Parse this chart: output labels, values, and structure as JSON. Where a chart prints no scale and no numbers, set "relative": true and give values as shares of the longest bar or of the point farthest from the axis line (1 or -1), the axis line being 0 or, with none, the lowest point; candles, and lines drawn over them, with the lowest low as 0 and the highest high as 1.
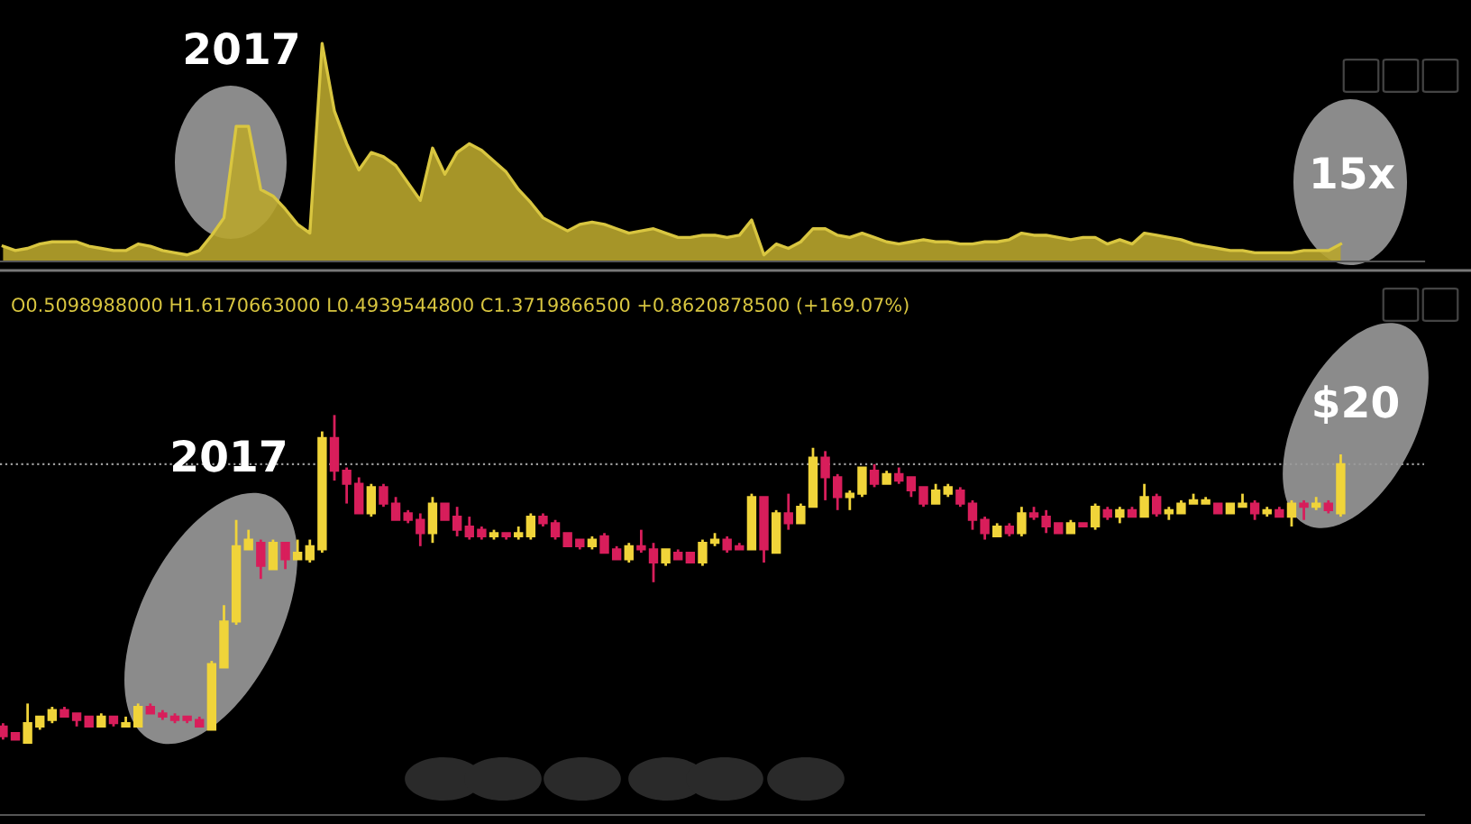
{
  "chart_data": [
    {
      "type": "area",
      "relative": true,
      "annotations": [
        "2017",
        "15x"
      ],
      "categories": [
        null,
        null,
        null,
        null,
        null,
        null,
        null,
        null,
        null,
        null,
        null,
        null,
        null,
        null,
        null,
        null,
        null,
        null,
        null,
        null,
        null,
        null,
        null,
        null,
        null,
        null,
        null,
        null,
        null,
        null,
        null,
        null,
        null,
        null,
        null,
        null,
        null,
        null,
        null,
        null,
        null,
        null,
        null,
        null,
        null,
        null,
        null,
        null,
        null,
        null,
        null,
        null,
        null,
        null,
        null,
        null,
        null,
        null,
        null,
        null,
        null,
        null,
        null,
        null,
        null,
        null,
        null,
        null,
        null,
        null,
        null,
        null,
        null,
        null,
        null,
        null,
        null,
        null,
        null,
        null,
        null,
        null,
        null,
        null,
        null,
        null,
        null,
        null,
        null,
        null,
        null,
        null,
        null,
        null,
        null,
        null,
        null,
        null,
        null,
        null,
        null,
        null,
        null,
        null,
        null,
        null,
        null,
        null,
        null,
        null
      ],
      "series": [
        {
          "color": "#b8a52c",
          "values": [
            0.07,
            0.05,
            0.06,
            0.08,
            0.09,
            0.09,
            0.09,
            0.07,
            0.06,
            0.05,
            0.05,
            0.08,
            0.07,
            0.05,
            0.04,
            0.03,
            0.05,
            0.12,
            0.2,
            0.62,
            0.62,
            0.33,
            0.3,
            0.24,
            0.17,
            0.13,
            1.0,
            0.69,
            0.54,
            0.42,
            0.5,
            0.48,
            0.44,
            0.36,
            0.28,
            0.52,
            0.4,
            0.5,
            0.54,
            0.51,
            0.46,
            0.41,
            0.33,
            0.27,
            0.2,
            0.17,
            0.14,
            0.17,
            0.18,
            0.17,
            0.15,
            0.13,
            0.14,
            0.15,
            0.13,
            0.11,
            0.11,
            0.12,
            0.12,
            0.11,
            0.12,
            0.19,
            0.03,
            0.08,
            0.06,
            0.09,
            0.15,
            0.15,
            0.12,
            0.11,
            0.13,
            0.11,
            0.09,
            0.08,
            0.09,
            0.1,
            0.09,
            0.09,
            0.08,
            0.08,
            0.09,
            0.09,
            0.1,
            0.13,
            0.12,
            0.12,
            0.11,
            0.1,
            0.11,
            0.11,
            0.08,
            0.1,
            0.08,
            0.13,
            0.12,
            0.11,
            0.1,
            0.08,
            0.07,
            0.06,
            0.05,
            0.05,
            0.04,
            0.04,
            0.04,
            0.04,
            0.05,
            0.05,
            0.05,
            0.08
          ]
        }
      ]
    },
    {
      "type": "candlestick",
      "relative": true,
      "annotations": [
        "O0.5098988000 H1.6170663000 L0.4939544800 C1.3719866500 +0.8620878500 (+169.07%)",
        "2017",
        "$20"
      ],
      "ref_lines": [
        {
          "axis": "y",
          "value": 0.85,
          "color": "#9a9a9a",
          "line_style": "dotted"
        }
      ],
      "categories": [
        null,
        null,
        null,
        null,
        null,
        null,
        null,
        null,
        null,
        null,
        null,
        null,
        null,
        null,
        null,
        null,
        null,
        null,
        null,
        null,
        null,
        null,
        null,
        null,
        null,
        null,
        null,
        null,
        null,
        null,
        null,
        null,
        null,
        null,
        null,
        null,
        null,
        null,
        null,
        null,
        null,
        null,
        null,
        null,
        null,
        null,
        null,
        null,
        null,
        null,
        null,
        null,
        null,
        null,
        null,
        null,
        null,
        null,
        null,
        null,
        null,
        null,
        null,
        null,
        null,
        null,
        null,
        null,
        null,
        null,
        null,
        null,
        null,
        null,
        null,
        null,
        null,
        null,
        null,
        null,
        null,
        null,
        null,
        null,
        null,
        null,
        null,
        null,
        null,
        null,
        null,
        null,
        null,
        null,
        null,
        null,
        null,
        null,
        null,
        null,
        null,
        null,
        null,
        null,
        null,
        null,
        null,
        null,
        null,
        null
      ],
      "colors": [
        "#d81e5b",
        "#d81e5b",
        "#f0d43a",
        "#f0d43a",
        "#f0d43a",
        "#d81e5b",
        "#d81e5b",
        "#d81e5b",
        "#f0d43a",
        "#d81e5b",
        "#f0d43a",
        "#f0d43a",
        "#d81e5b",
        "#d81e5b",
        "#d81e5b",
        "#d81e5b",
        "#d81e5b",
        "#f0d43a",
        "#f0d43a",
        "#f0d43a",
        "#f0d43a",
        "#d81e5b",
        "#f0d43a",
        "#d81e5b",
        "#f0d43a",
        "#f0d43a",
        "#f0d43a",
        "#d81e5b",
        "#d81e5b",
        "#d81e5b",
        "#f0d43a",
        "#d81e5b",
        "#d81e5b",
        "#d81e5b",
        "#d81e5b",
        "#f0d43a",
        "#d81e5b",
        "#d81e5b",
        "#d81e5b",
        "#d81e5b",
        "#f0d43a",
        "#d81e5b",
        "#f0d43a",
        "#f0d43a",
        "#d81e5b",
        "#d81e5b",
        "#d81e5b",
        "#d81e5b",
        "#f0d43a",
        "#d81e5b",
        "#d81e5b",
        "#f0d43a",
        "#d81e5b",
        "#d81e5b",
        "#f0d43a",
        "#d81e5b",
        "#d81e5b",
        "#f0d43a",
        "#f0d43a",
        "#d81e5b",
        "#d81e5b",
        "#f0d43a",
        "#d81e5b",
        "#f0d43a",
        "#d81e5b",
        "#f0d43a",
        "#f0d43a",
        "#d81e5b",
        "#d81e5b",
        "#f0d43a",
        "#f0d43a",
        "#d81e5b",
        "#f0d43a",
        "#d81e5b",
        "#d81e5b",
        "#d81e5b",
        "#f0d43a",
        "#f0d43a",
        "#d81e5b",
        "#d81e5b",
        "#d81e5b",
        "#f0d43a",
        "#d81e5b",
        "#f0d43a",
        "#d81e5b",
        "#d81e5b",
        "#d81e5b",
        "#f0d43a",
        "#d81e5b",
        "#f0d43a",
        "#d81e5b",
        "#f0d43a",
        "#d81e5b",
        "#f0d43a",
        "#d81e5b",
        "#f0d43a",
        "#f0d43a",
        "#f0d43a",
        "#f0d43a",
        "#d81e5b",
        "#f0d43a",
        "#f0d43a",
        "#d81e5b",
        "#f0d43a",
        "#d81e5b",
        "#f0d43a",
        "#d81e5b",
        "#f0d43a",
        "#d81e5b",
        "#f0d43a"
      ],
      "ohlc": [
        [
          0.05,
          0.06,
          0.01,
          0.02
        ],
        [
          0.03,
          0.03,
          0.01,
          0.01
        ],
        [
          0.0,
          0.12,
          0,
          0.06
        ],
        [
          0.05,
          0.08,
          0.04,
          0.08
        ],
        [
          0.07,
          0.11,
          0.06,
          0.1
        ],
        [
          0.1,
          0.11,
          0.08,
          0.08
        ],
        [
          0.09,
          0.09,
          0.05,
          0.07
        ],
        [
          0.08,
          0.08,
          0.05,
          0.05
        ],
        [
          0.05,
          0.09,
          0.05,
          0.08
        ],
        [
          0.08,
          0.08,
          0.05,
          0.06
        ],
        [
          0.05,
          0.08,
          0.05,
          0.06
        ],
        [
          0.05,
          0.12,
          0.05,
          0.11
        ],
        [
          0.11,
          0.12,
          0.09,
          0.09
        ],
        [
          0.09,
          0.1,
          0.07,
          0.08
        ],
        [
          0.08,
          0.09,
          0.06,
          0.07
        ],
        [
          0.08,
          0.08,
          0.06,
          0.07
        ],
        [
          0.07,
          0.08,
          0.05,
          0.05
        ],
        [
          0.04,
          0.25,
          0.04,
          0.24
        ],
        [
          0.23,
          0.42,
          0.23,
          0.37
        ],
        [
          0.37,
          0.68,
          0.36,
          0.6
        ],
        [
          0.59,
          0.65,
          0.59,
          0.62
        ],
        [
          0.61,
          0.62,
          0.5,
          0.54
        ],
        [
          0.53,
          0.62,
          0.53,
          0.61
        ],
        [
          0.61,
          0.61,
          0.53,
          0.56
        ],
        [
          0.56,
          0.62,
          0.56,
          0.58
        ],
        [
          0.56,
          0.62,
          0.55,
          0.6
        ],
        [
          0.59,
          0.95,
          0.58,
          0.93
        ],
        [
          0.93,
          1,
          0.8,
          0.83
        ],
        [
          0.83,
          0.84,
          0.73,
          0.79
        ],
        [
          0.79,
          0.81,
          0.7,
          0.7
        ],
        [
          0.7,
          0.79,
          0.69,
          0.78
        ],
        [
          0.78,
          0.79,
          0.72,
          0.73
        ],
        [
          0.73,
          0.75,
          0.68,
          0.68
        ],
        [
          0.7,
          0.71,
          0.67,
          0.68
        ],
        [
          0.68,
          0.7,
          0.6,
          0.64
        ],
        [
          0.64,
          0.75,
          0.61,
          0.73
        ],
        [
          0.73,
          0.73,
          0.68,
          0.68
        ],
        [
          0.69,
          0.72,
          0.63,
          0.65
        ],
        [
          0.66,
          0.69,
          0.62,
          0.63
        ],
        [
          0.65,
          0.66,
          0.62,
          0.63
        ],
        [
          0.63,
          0.65,
          0.62,
          0.64
        ],
        [
          0.64,
          0.64,
          0.62,
          0.63
        ],
        [
          0.63,
          0.66,
          0.62,
          0.64
        ],
        [
          0.63,
          0.7,
          0.62,
          0.69
        ],
        [
          0.69,
          0.7,
          0.66,
          0.67
        ],
        [
          0.67,
          0.68,
          0.62,
          0.63
        ],
        [
          0.64,
          0.64,
          0.6,
          0.6
        ],
        [
          0.62,
          0.62,
          0.59,
          0.6
        ],
        [
          0.6,
          0.63,
          0.59,
          0.62
        ],
        [
          0.63,
          0.64,
          0.58,
          0.58
        ],
        [
          0.59,
          0.6,
          0.56,
          0.56
        ],
        [
          0.56,
          0.61,
          0.55,
          0.6
        ],
        [
          0.6,
          0.65,
          0.58,
          0.59
        ],
        [
          0.59,
          0.61,
          0.49,
          0.55
        ],
        [
          0.55,
          0.59,
          0.54,
          0.59
        ],
        [
          0.58,
          0.59,
          0.56,
          0.56
        ],
        [
          0.58,
          0.58,
          0.55,
          0.55
        ],
        [
          0.55,
          0.62,
          0.54,
          0.61
        ],
        [
          0.61,
          0.64,
          0.6,
          0.62
        ],
        [
          0.62,
          0.63,
          0.58,
          0.59
        ],
        [
          0.6,
          0.61,
          0.59,
          0.59
        ],
        [
          0.59,
          0.76,
          0.59,
          0.75
        ],
        [
          0.75,
          0.75,
          0.55,
          0.59
        ],
        [
          0.58,
          0.71,
          0.58,
          0.7
        ],
        [
          0.7,
          0.76,
          0.65,
          0.67
        ],
        [
          0.67,
          0.73,
          0.67,
          0.72
        ],
        [
          0.72,
          0.9,
          0.72,
          0.87
        ],
        [
          0.87,
          0.89,
          0.74,
          0.81
        ],
        [
          0.81,
          0.82,
          0.71,
          0.75
        ],
        [
          0.75,
          0.77,
          0.71,
          0.76
        ],
        [
          0.76,
          0.84,
          0.75,
          0.84
        ],
        [
          0.83,
          0.85,
          0.78,
          0.79
        ],
        [
          0.79,
          0.83,
          0.79,
          0.82
        ],
        [
          0.82,
          0.84,
          0.79,
          0.8
        ],
        [
          0.81,
          0.81,
          0.75,
          0.77
        ],
        [
          0.78,
          0.78,
          0.72,
          0.73
        ],
        [
          0.73,
          0.79,
          0.73,
          0.77
        ],
        [
          0.76,
          0.79,
          0.75,
          0.78
        ],
        [
          0.77,
          0.78,
          0.72,
          0.73
        ],
        [
          0.73,
          0.74,
          0.65,
          0.68
        ],
        [
          0.68,
          0.69,
          0.62,
          0.64
        ],
        [
          0.63,
          0.67,
          0.63,
          0.66
        ],
        [
          0.66,
          0.67,
          0.63,
          0.64
        ],
        [
          0.64,
          0.72,
          0.63,
          0.7
        ],
        [
          0.7,
          0.72,
          0.68,
          0.69
        ],
        [
          0.69,
          0.71,
          0.64,
          0.66
        ],
        [
          0.67,
          0.67,
          0.64,
          0.64
        ],
        [
          0.64,
          0.68,
          0.64,
          0.67
        ],
        [
          0.67,
          0.67,
          0.66,
          0.66
        ],
        [
          0.66,
          0.73,
          0.65,
          0.72
        ],
        [
          0.71,
          0.72,
          0.68,
          0.69
        ],
        [
          0.69,
          0.72,
          0.67,
          0.71
        ],
        [
          0.71,
          0.72,
          0.69,
          0.69
        ],
        [
          0.69,
          0.79,
          0.69,
          0.75
        ],
        [
          0.75,
          0.76,
          0.69,
          0.7
        ],
        [
          0.7,
          0.72,
          0.68,
          0.71
        ],
        [
          0.7,
          0.74,
          0.7,
          0.73
        ],
        [
          0.73,
          0.76,
          0.73,
          0.74
        ],
        [
          0.73,
          0.75,
          0.73,
          0.74
        ],
        [
          0.73,
          0.73,
          0.7,
          0.7
        ],
        [
          0.7,
          0.73,
          0.7,
          0.73
        ],
        [
          0.72,
          0.76,
          0.72,
          0.73
        ],
        [
          0.73,
          0.74,
          0.68,
          0.7
        ],
        [
          0.7,
          0.72,
          0.69,
          0.71
        ],
        [
          0.71,
          0.72,
          0.69,
          0.69
        ],
        [
          0.69,
          0.74,
          0.66,
          0.73
        ],
        [
          0.73,
          0.74,
          0.68,
          0.72
        ],
        [
          0.72,
          0.75,
          0.71,
          0.73
        ],
        [
          0.73,
          0.74,
          0.7,
          0.71
        ],
        [
          0.7,
          0.88,
          0.69,
          0.85
        ]
      ]
    }
  ]
}
